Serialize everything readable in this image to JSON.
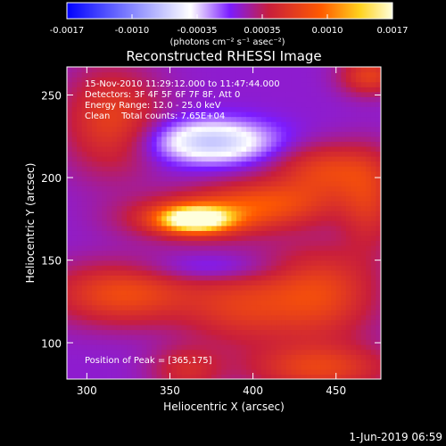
{
  "chart_data": {
    "type": "heatmap",
    "title": "Reconstructed RHESSI Image",
    "xlabel": "Heliocentric X (arcsec)",
    "ylabel": "Heliocentric Y (arcsec)",
    "xlim": [
      288,
      477
    ],
    "ylim": [
      78,
      267
    ],
    "x_ticks": [
      300,
      350,
      400,
      450
    ],
    "y_ticks": [
      100,
      150,
      200,
      250
    ],
    "colorbar": {
      "range": [
        -0.0017,
        0.0017
      ],
      "tick_labels": [
        "-0.0017",
        "-0.0010",
        "-0.00035",
        "0.00035",
        "0.0010",
        "0.0017"
      ],
      "unit_label": "(photons cm⁻² s⁻¹ asec⁻²)",
      "colors": [
        "#0000ff",
        "#ffffff",
        "#7b1cff",
        "#c81e3c",
        "#ff5a00",
        "#ffd21e",
        "#ffffdc"
      ]
    },
    "annotations": {
      "time": "15-Nov-2010 11:29:12.000 to 11:47:44.000",
      "detectors": "Detectors: 3F 4F 5F 6F 7F 8F, Att 0",
      "energy": "Energy Range: 12.0 - 25.0 keV",
      "clean": "Clean    Total counts: 7.65E+04",
      "peak": "Position of Peak = [365,175]"
    },
    "features": [
      {
        "name": "peak",
        "x": 365,
        "y": 175,
        "sx": 14,
        "sy": 5,
        "v": 0.00145
      },
      {
        "name": "bright-core",
        "x": 365,
        "y": 176,
        "sx": 28,
        "sy": 9,
        "v": 0.0007
      },
      {
        "name": "ribbon-west",
        "x": 410,
        "y": 185,
        "sx": 30,
        "sy": 10,
        "v": 0.00065
      },
      {
        "name": "ribbon-ne",
        "x": 445,
        "y": 205,
        "sx": 22,
        "sy": 11,
        "v": 0.0006
      },
      {
        "name": "ribbon-east-edge",
        "x": 470,
        "y": 185,
        "sx": 12,
        "sy": 20,
        "v": 0.00045
      },
      {
        "name": "patch-nw",
        "x": 315,
        "y": 235,
        "sx": 20,
        "sy": 22,
        "v": 0.0006
      },
      {
        "name": "patch-sw",
        "x": 322,
        "y": 130,
        "sx": 30,
        "sy": 13,
        "v": 0.0007
      },
      {
        "name": "patch-s",
        "x": 392,
        "y": 122,
        "sx": 24,
        "sy": 16,
        "v": 0.0005
      },
      {
        "name": "patch-se",
        "x": 440,
        "y": 130,
        "sx": 24,
        "sy": 20,
        "v": 0.00065
      },
      {
        "name": "patch-bottom-right",
        "x": 440,
        "y": 85,
        "sx": 30,
        "sy": 10,
        "v": 0.0006
      },
      {
        "name": "patch-bottom-left",
        "x": 360,
        "y": 84,
        "sx": 15,
        "sy": 10,
        "v": 0.0004
      },
      {
        "name": "patch-top-right",
        "x": 470,
        "y": 262,
        "sx": 12,
        "sy": 8,
        "v": 0.0006
      },
      {
        "name": "dark-hole",
        "x": 375,
        "y": 222,
        "sx": 26,
        "sy": 9,
        "v": -0.0008
      },
      {
        "name": "dark-valley",
        "x": 375,
        "y": 145,
        "sx": 30,
        "sy": 6,
        "v": -0.00025
      }
    ],
    "background_value": 0.0001
  },
  "footer": {
    "date": "1-Jun-2019 06:59"
  }
}
